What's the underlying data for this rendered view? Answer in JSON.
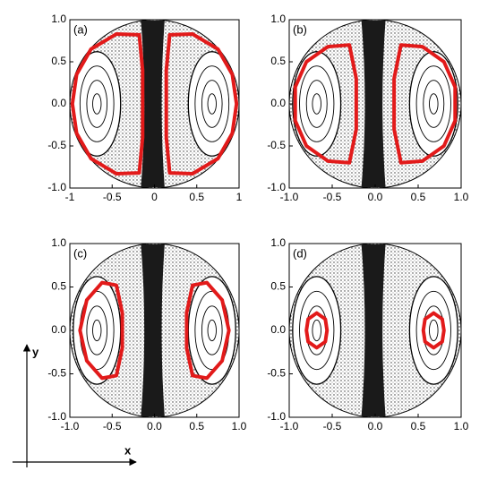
{
  "chart_data": [
    {
      "type": "phase-portrait",
      "label": "(a)",
      "xlim": [
        -1,
        1
      ],
      "ylim": [
        -1,
        1
      ],
      "xticks": [
        -1,
        -0.5,
        0,
        0.5,
        1
      ],
      "yticks": [
        {
          "value": -1,
          "label": "-1.0"
        },
        {
          "value": -0.5,
          "label": "-0.5"
        },
        {
          "value": 0,
          "label": "0.0"
        },
        {
          "value": 0.5,
          "label": "0.5"
        },
        {
          "value": 1,
          "label": "1.0"
        }
      ],
      "series": [
        {
          "color": "#e21a1a",
          "x": [
            -0.18,
            -0.45,
            -0.75,
            -0.92,
            -0.97,
            -0.92,
            -0.75,
            -0.45,
            -0.18,
            -0.14,
            -0.14
          ],
          "values": [
            0.82,
            0.83,
            0.65,
            0.35,
            0,
            -0.35,
            -0.65,
            -0.83,
            -0.82,
            -0.4,
            0.4
          ]
        },
        {
          "color": "#e21a1a",
          "x": [
            0.18,
            0.45,
            0.75,
            0.92,
            0.97,
            0.92,
            0.75,
            0.45,
            0.18,
            0.14,
            0.14
          ],
          "values": [
            0.82,
            0.83,
            0.65,
            0.35,
            0,
            -0.35,
            -0.65,
            -0.83,
            -0.82,
            -0.4,
            0.4
          ]
        }
      ]
    },
    {
      "type": "phase-portrait",
      "label": "(b)",
      "xlim": [
        -1,
        1
      ],
      "ylim": [
        -1,
        1
      ],
      "xticks": [
        {
          "value": -1,
          "label": "-1.0"
        },
        {
          "value": -0.5,
          "label": "-0.5"
        },
        {
          "value": 0,
          "label": "0.0"
        },
        {
          "value": 0.5,
          "label": "0.5"
        },
        {
          "value": 1,
          "label": "1.0"
        }
      ],
      "yticks": [
        {
          "value": -1,
          "label": "-1.0"
        },
        {
          "value": -0.5,
          "label": "-0.5"
        },
        {
          "value": 0,
          "label": "0.0"
        },
        {
          "value": 0.5,
          "label": "0.5"
        },
        {
          "value": 1,
          "label": "1.0"
        }
      ],
      "series": [
        {
          "color": "#e21a1a",
          "x": [
            -0.3,
            -0.55,
            -0.8,
            -0.93,
            -0.93,
            -0.8,
            -0.55,
            -0.3,
            -0.22,
            -0.22
          ],
          "values": [
            0.7,
            0.68,
            0.5,
            0.2,
            -0.2,
            -0.5,
            -0.68,
            -0.7,
            -0.3,
            0.3
          ]
        },
        {
          "color": "#e21a1a",
          "x": [
            0.3,
            0.55,
            0.8,
            0.93,
            0.93,
            0.8,
            0.55,
            0.3,
            0.22,
            0.22
          ],
          "values": [
            0.7,
            0.68,
            0.5,
            0.2,
            -0.2,
            -0.5,
            -0.68,
            -0.7,
            -0.3,
            0.3
          ]
        }
      ]
    },
    {
      "type": "phase-portrait",
      "label": "(c)",
      "xlim": [
        -1,
        1
      ],
      "ylim": [
        -1,
        1
      ],
      "xticks": [
        {
          "value": -1,
          "label": "-1.0"
        },
        {
          "value": -0.5,
          "label": "-0.5"
        },
        {
          "value": 0,
          "label": "0.0"
        },
        {
          "value": 0.5,
          "label": "0.5"
        },
        {
          "value": 1,
          "label": "1.0"
        }
      ],
      "yticks": [
        {
          "value": -1,
          "label": "-1.0"
        },
        {
          "value": -0.5,
          "label": "-0.5"
        },
        {
          "value": 0,
          "label": "0.0"
        },
        {
          "value": 0.5,
          "label": "0.5"
        },
        {
          "value": 1,
          "label": "1.0"
        }
      ],
      "series": [
        {
          "color": "#e21a1a",
          "x": [
            -0.45,
            -0.62,
            -0.8,
            -0.88,
            -0.8,
            -0.62,
            -0.45,
            -0.38,
            -0.38
          ],
          "values": [
            0.52,
            0.55,
            0.35,
            0,
            -0.35,
            -0.55,
            -0.52,
            -0.2,
            0.2
          ]
        },
        {
          "color": "#e21a1a",
          "x": [
            0.45,
            0.62,
            0.8,
            0.88,
            0.8,
            0.62,
            0.45,
            0.38,
            0.38
          ],
          "values": [
            0.52,
            0.55,
            0.35,
            0,
            -0.35,
            -0.55,
            -0.52,
            -0.2,
            0.2
          ]
        }
      ]
    },
    {
      "type": "phase-portrait",
      "label": "(d)",
      "xlim": [
        -1,
        1
      ],
      "ylim": [
        -1,
        1
      ],
      "xticks": [
        {
          "value": -1,
          "label": "-1.0"
        },
        {
          "value": -0.5,
          "label": "-0.5"
        },
        {
          "value": 0,
          "label": "0.0"
        },
        {
          "value": 0.5,
          "label": "0.5"
        },
        {
          "value": 1,
          "label": "1.0"
        }
      ],
      "yticks": [
        {
          "value": -1,
          "label": "-1.0"
        },
        {
          "value": -0.5,
          "label": "-0.5"
        },
        {
          "value": 0,
          "label": "0.0"
        },
        {
          "value": 0.5,
          "label": "0.5"
        },
        {
          "value": 1,
          "label": "1.0"
        }
      ],
      "series": [
        {
          "color": "#e21a1a",
          "x": [
            -0.68,
            -0.58,
            -0.56,
            -0.58,
            -0.68,
            -0.78,
            -0.8,
            -0.78
          ],
          "values": [
            0.2,
            0.13,
            0,
            -0.13,
            -0.2,
            -0.13,
            0,
            0.13
          ]
        },
        {
          "color": "#e21a1a",
          "x": [
            0.68,
            0.78,
            0.8,
            0.78,
            0.68,
            0.58,
            0.56,
            0.58
          ],
          "values": [
            0.2,
            0.13,
            0,
            -0.13,
            -0.2,
            -0.13,
            0,
            0.13
          ]
        }
      ]
    }
  ],
  "axis_indicator": {
    "x": "x",
    "y": "y"
  }
}
